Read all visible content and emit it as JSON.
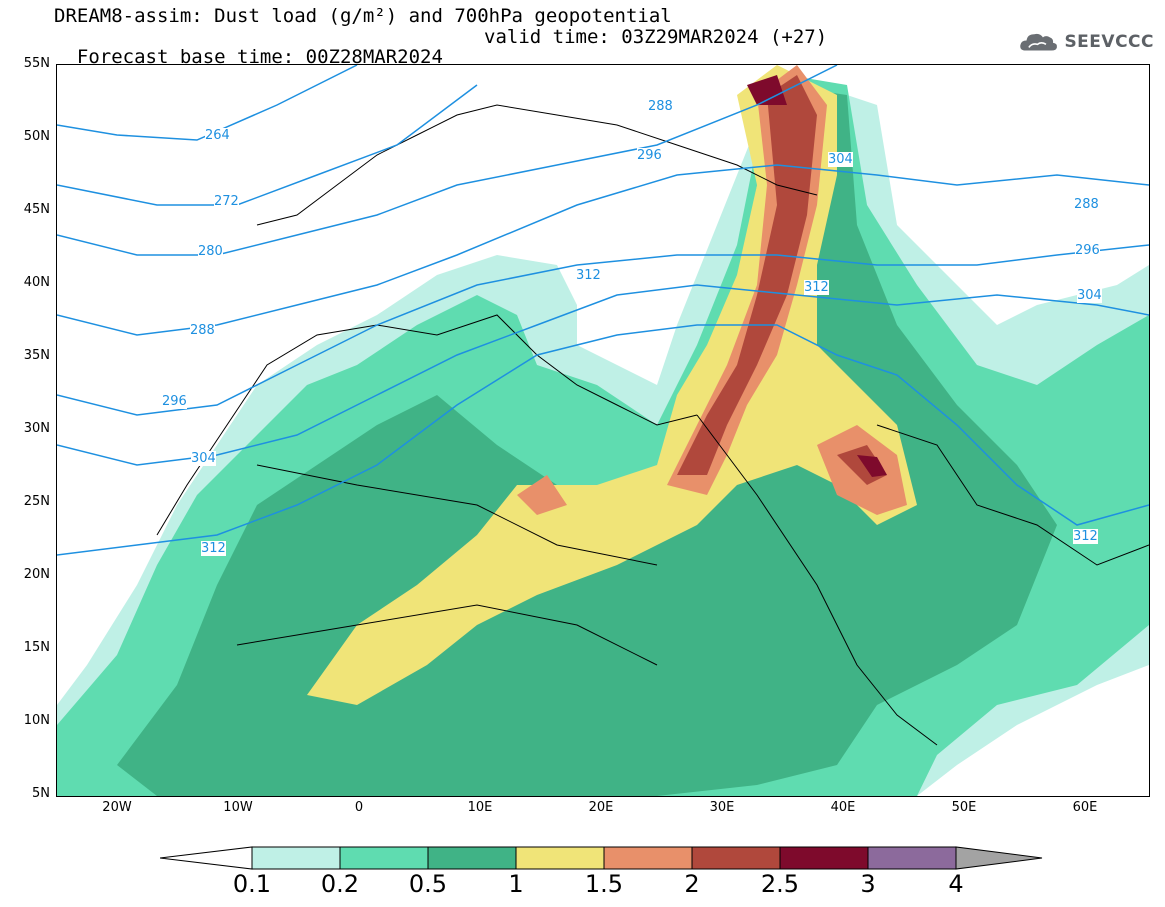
{
  "title": {
    "line1": "DREAM8-assim: Dust load (g/m²) and 700hPa geopotential",
    "line2_left": "Forecast base time: 00Z28MAR2024",
    "line2_right": "valid time: 03Z29MAR2024 (+27)"
  },
  "logo": {
    "text": "SEEVCCC",
    "icon": "cloud-icon"
  },
  "axes": {
    "lat_labels": [
      "55N",
      "50N",
      "45N",
      "40N",
      "35N",
      "30N",
      "25N",
      "20N",
      "15N",
      "10N",
      "5N"
    ],
    "lon_labels": [
      "20W",
      "10W",
      "0",
      "10E",
      "20E",
      "30E",
      "40E",
      "50E",
      "60E"
    ]
  },
  "contour_labels": [
    "264",
    "272",
    "280",
    "288",
    "296",
    "304",
    "312",
    "288",
    "296",
    "304",
    "312",
    "288",
    "296",
    "304",
    "312",
    "312"
  ],
  "colorbar": {
    "labels": [
      "0.1",
      "0.2",
      "0.5",
      "1",
      "1.5",
      "2",
      "2.5",
      "3",
      "4"
    ],
    "colors": [
      "#bff0e6",
      "#5fdcb0",
      "#40b386",
      "#f0e478",
      "#e8906a",
      "#b0483c",
      "#7e0a2c",
      "#8c6a9c",
      "#a3a3a3"
    ]
  },
  "colors": {
    "geopotential": "#1e90e0",
    "land_border": "#000000"
  }
}
